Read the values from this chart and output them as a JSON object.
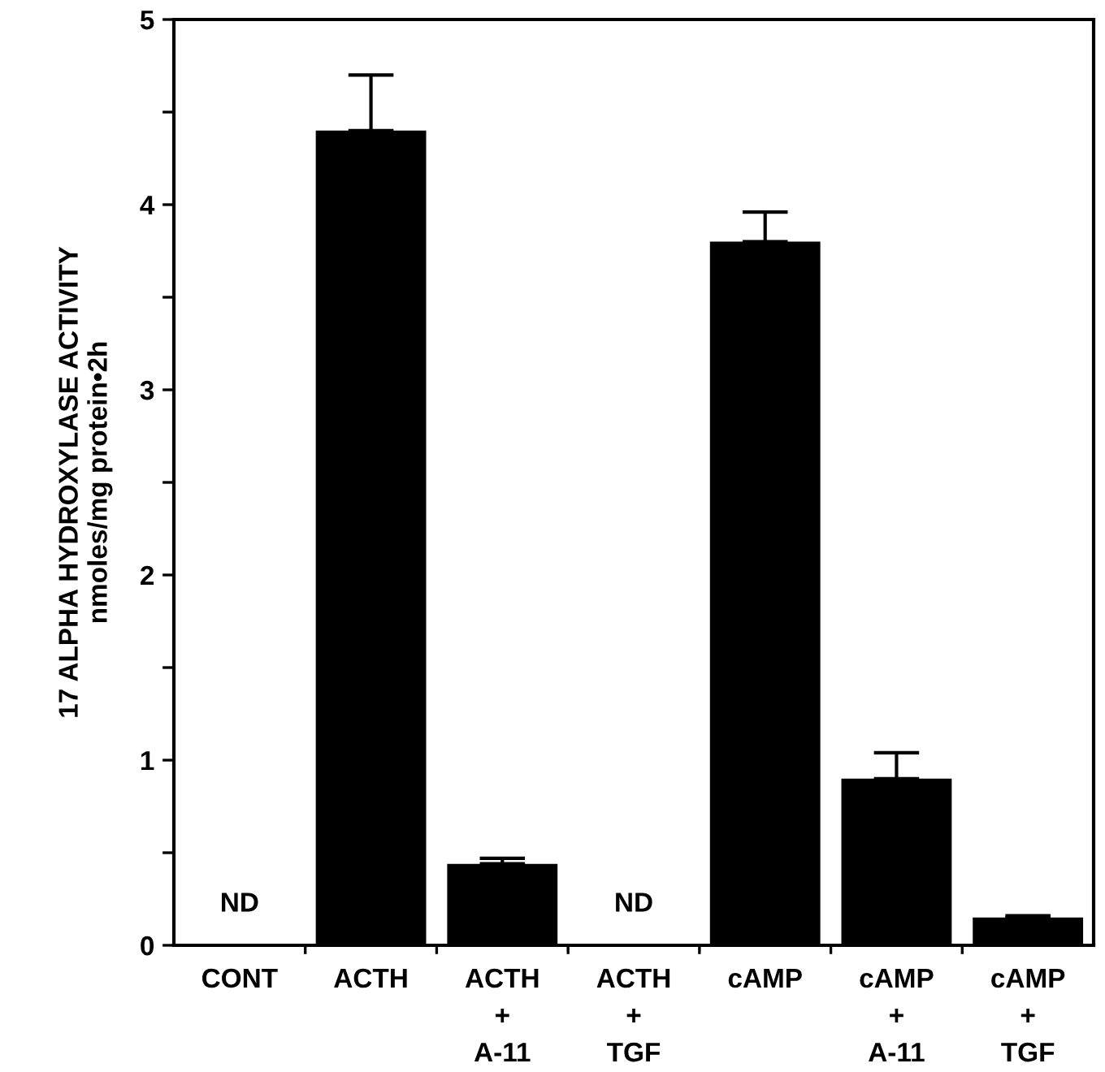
{
  "chart_data": {
    "type": "bar",
    "ylabel": "17 ALPHA HYDROXYLASE ACTIVITY\nnmoles/mg protein•2h",
    "categories": [
      "CONT",
      "ACTH",
      "ACTH\n+\nA-11",
      "ACTH\n+\nTGF",
      "cAMP",
      "cAMP\n+\nA-11",
      "cAMP\n+\nTGF"
    ],
    "values": [
      null,
      4.4,
      0.44,
      null,
      3.8,
      0.9,
      0.15
    ],
    "errors": [
      null,
      [
        4.4,
        4.7
      ],
      [
        0.44,
        0.47
      ],
      null,
      [
        3.8,
        3.96
      ],
      [
        0.9,
        1.04
      ],
      [
        0.15,
        0.16
      ]
    ],
    "color": "#000000",
    "ylim": [
      0,
      5
    ],
    "yticks": [
      0,
      {
        "value": 0.5,
        "label": null
      },
      1,
      {
        "value": 1.5,
        "label": null
      },
      2,
      {
        "value": 2.5,
        "label": null
      },
      3,
      {
        "value": 3.5,
        "label": null
      },
      4,
      {
        "value": 4.5,
        "label": null
      },
      5
    ],
    "annotations": [
      "ND",
      "ND"
    ],
    "grid": false,
    "legend": false
  }
}
